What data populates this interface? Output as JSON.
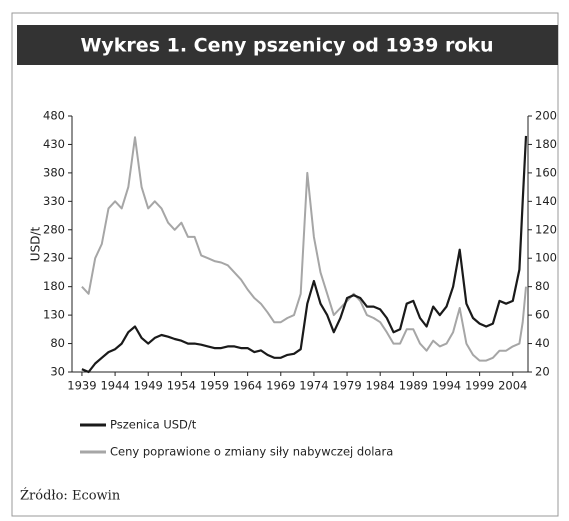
{
  "chart_data": {
    "type": "line",
    "title": "Wykres 1. Ceny pszenicy od 1939 roku",
    "y_label": "USD/t",
    "source": "Źródło: Ecowin",
    "x": [
      1939,
      1940,
      1941,
      1942,
      1943,
      1944,
      1945,
      1946,
      1947,
      1948,
      1949,
      1950,
      1951,
      1952,
      1953,
      1954,
      1955,
      1956,
      1957,
      1958,
      1959,
      1960,
      1961,
      1962,
      1963,
      1964,
      1965,
      1966,
      1967,
      1968,
      1969,
      1970,
      1971,
      1972,
      1973,
      1974,
      1975,
      1976,
      1977,
      1978,
      1979,
      1980,
      1981,
      1982,
      1983,
      1984,
      1985,
      1986,
      1987,
      1988,
      1989,
      1990,
      1991,
      1992,
      1993,
      1994,
      1995,
      1996,
      1997,
      1998,
      1999,
      2000,
      2001,
      2002,
      2003,
      2004,
      2005,
      2005.5,
      2006
    ],
    "series": [
      {
        "name": "Pszenica USD/t",
        "color": "#1a1a1a",
        "values": [
          35,
          30,
          45,
          55,
          65,
          70,
          80,
          100,
          110,
          90,
          80,
          90,
          95,
          92,
          88,
          85,
          80,
          80,
          78,
          75,
          72,
          72,
          75,
          75,
          72,
          72,
          65,
          68,
          60,
          55,
          55,
          60,
          62,
          70,
          150,
          190,
          150,
          130,
          100,
          125,
          160,
          165,
          160,
          145,
          145,
          140,
          125,
          100,
          105,
          150,
          155,
          125,
          110,
          145,
          130,
          145,
          180,
          245,
          150,
          125,
          115,
          110,
          115,
          155,
          150,
          155,
          210,
          330,
          445
        ]
      },
      {
        "name": "Ceny poprawione o zmiany siły nabywczej dolara",
        "color": "#a6a6a6",
        "axis": "y2",
        "values": [
          80,
          75,
          100,
          110,
          135,
          140,
          135,
          150,
          185,
          150,
          135,
          140,
          135,
          125,
          120,
          125,
          115,
          115,
          102,
          100,
          98,
          97,
          95,
          90,
          85,
          78,
          72,
          68,
          62,
          55,
          55,
          58,
          60,
          75,
          160,
          115,
          90,
          75,
          60,
          65,
          70,
          75,
          70,
          60,
          58,
          55,
          48,
          40,
          40,
          50,
          50,
          40,
          35,
          42,
          38,
          40,
          48,
          65,
          40,
          32,
          28,
          28,
          30,
          35,
          35,
          38,
          40,
          55,
          80
        ]
      }
    ],
    "xlim": [
      1937.5,
      2006.3
    ],
    "xticks": [
      1939,
      1944,
      1949,
      1954,
      1959,
      1964,
      1969,
      1974,
      1979,
      1984,
      1989,
      1994,
      1999,
      2004
    ],
    "ylim": [
      30,
      480
    ],
    "yticks": [
      30,
      80,
      130,
      180,
      230,
      280,
      330,
      380,
      430,
      480
    ],
    "y2lim": [
      20,
      200
    ],
    "y2ticks": [
      20,
      40,
      60,
      80,
      100,
      120,
      140,
      160,
      180,
      200
    ]
  }
}
